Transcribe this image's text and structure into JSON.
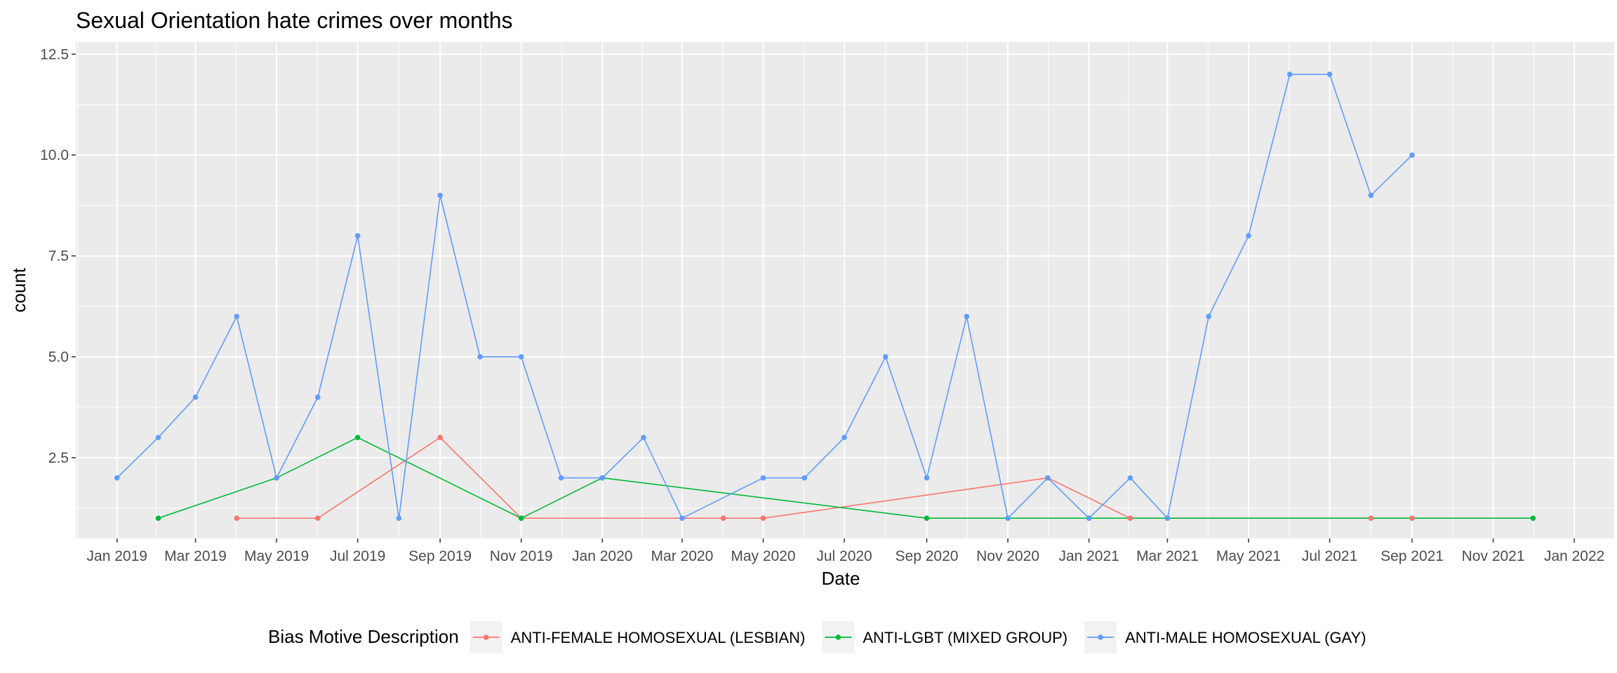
{
  "chart_data": {
    "type": "line",
    "title": "Sexual Orientation hate crimes over months",
    "xlabel": "Date",
    "ylabel": "count",
    "xlim": [
      "2018-12-01",
      "2022-01-31"
    ],
    "ylim": [
      0.5,
      12.8
    ],
    "x_ticks": [
      "2019-01-01",
      "2019-03-01",
      "2019-05-01",
      "2019-07-01",
      "2019-09-01",
      "2019-11-01",
      "2020-01-01",
      "2020-03-01",
      "2020-05-01",
      "2020-07-01",
      "2020-09-01",
      "2020-11-01",
      "2021-01-01",
      "2021-03-01",
      "2021-05-01",
      "2021-07-01",
      "2021-09-01",
      "2021-11-01",
      "2022-01-01"
    ],
    "x_tick_labels": [
      "Jan 2019",
      "Mar 2019",
      "May 2019",
      "Jul 2019",
      "Sep 2019",
      "Nov 2019",
      "Jan 2020",
      "Mar 2020",
      "May 2020",
      "Jul 2020",
      "Sep 2020",
      "Nov 2020",
      "Jan 2021",
      "Mar 2021",
      "May 2021",
      "Jul 2021",
      "Sep 2021",
      "Nov 2021",
      "Jan 2022"
    ],
    "y_ticks": [
      2.5,
      5.0,
      7.5,
      10.0,
      12.5
    ],
    "y_tick_labels": [
      "2.5",
      "5.0",
      "7.5",
      "10.0",
      "12.5"
    ],
    "grid": true,
    "background": "#ebebeb",
    "legend": {
      "title": "Bias Motive Description",
      "position": "bottom"
    },
    "series": [
      {
        "name": "ANTI-FEMALE HOMOSEXUAL (LESBIAN)",
        "color": "#f8766d",
        "points": [
          {
            "x": "2019-04-01",
            "y": 1
          },
          {
            "x": "2019-06-01",
            "y": 1
          },
          {
            "x": "2019-09-01",
            "y": 3
          },
          {
            "x": "2019-11-01",
            "y": 1
          },
          {
            "x": "2020-04-01",
            "y": 1
          },
          {
            "x": "2020-05-01",
            "y": 1
          },
          {
            "x": "2020-12-01",
            "y": 2
          },
          {
            "x": "2021-02-01",
            "y": 1
          },
          {
            "x": "2021-08-01",
            "y": 1
          },
          {
            "x": "2021-09-01",
            "y": 1
          }
        ]
      },
      {
        "name": "ANTI-LGBT (MIXED GROUP)",
        "color": "#00ba38",
        "points": [
          {
            "x": "2019-02-01",
            "y": 1
          },
          {
            "x": "2019-05-01",
            "y": 2
          },
          {
            "x": "2019-07-01",
            "y": 3
          },
          {
            "x": "2019-11-01",
            "y": 1
          },
          {
            "x": "2020-01-01",
            "y": 2
          },
          {
            "x": "2020-09-01",
            "y": 1
          },
          {
            "x": "2020-11-01",
            "y": 1
          },
          {
            "x": "2021-01-01",
            "y": 1
          },
          {
            "x": "2021-03-01",
            "y": 1
          },
          {
            "x": "2021-12-01",
            "y": 1
          }
        ]
      },
      {
        "name": "ANTI-MALE HOMOSEXUAL (GAY)",
        "color": "#619cff",
        "points": [
          {
            "x": "2019-01-01",
            "y": 2
          },
          {
            "x": "2019-02-01",
            "y": 3
          },
          {
            "x": "2019-03-01",
            "y": 4
          },
          {
            "x": "2019-04-01",
            "y": 6
          },
          {
            "x": "2019-05-01",
            "y": 2
          },
          {
            "x": "2019-06-01",
            "y": 4
          },
          {
            "x": "2019-07-01",
            "y": 8
          },
          {
            "x": "2019-08-01",
            "y": 1
          },
          {
            "x": "2019-09-01",
            "y": 9
          },
          {
            "x": "2019-10-01",
            "y": 5
          },
          {
            "x": "2019-11-01",
            "y": 5
          },
          {
            "x": "2019-12-01",
            "y": 2
          },
          {
            "x": "2020-01-01",
            "y": 2
          },
          {
            "x": "2020-02-01",
            "y": 3
          },
          {
            "x": "2020-03-01",
            "y": 1
          },
          {
            "x": "2020-05-01",
            "y": 2
          },
          {
            "x": "2020-06-01",
            "y": 2
          },
          {
            "x": "2020-07-01",
            "y": 3
          },
          {
            "x": "2020-08-01",
            "y": 5
          },
          {
            "x": "2020-09-01",
            "y": 2
          },
          {
            "x": "2020-10-01",
            "y": 6
          },
          {
            "x": "2020-11-01",
            "y": 1
          },
          {
            "x": "2020-12-01",
            "y": 2
          },
          {
            "x": "2021-01-01",
            "y": 1
          },
          {
            "x": "2021-02-01",
            "y": 2
          },
          {
            "x": "2021-03-01",
            "y": 1
          },
          {
            "x": "2021-04-01",
            "y": 6
          },
          {
            "x": "2021-05-01",
            "y": 8
          },
          {
            "x": "2021-06-01",
            "y": 12
          },
          {
            "x": "2021-07-01",
            "y": 12
          },
          {
            "x": "2021-08-01",
            "y": 9
          },
          {
            "x": "2021-09-01",
            "y": 10
          }
        ]
      }
    ]
  }
}
